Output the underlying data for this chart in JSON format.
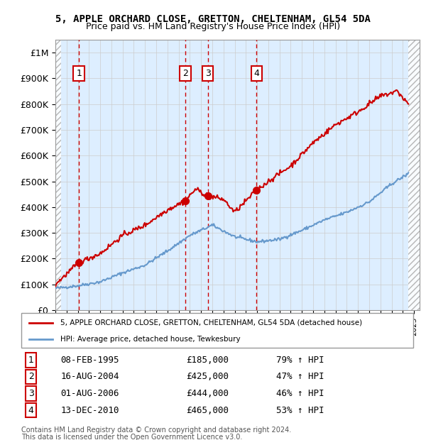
{
  "title": "5, APPLE ORCHARD CLOSE, GRETTON, CHELTENHAM, GL54 5DA",
  "subtitle": "Price paid vs. HM Land Registry's House Price Index (HPI)",
  "xlim": [
    1993.0,
    2025.5
  ],
  "ylim": [
    0,
    1050000
  ],
  "yticks": [
    0,
    100000,
    200000,
    300000,
    400000,
    500000,
    600000,
    700000,
    800000,
    900000,
    1000000
  ],
  "ytick_labels": [
    "£0",
    "£100K",
    "£200K",
    "£300K",
    "£400K",
    "£500K",
    "£600K",
    "£700K",
    "£800K",
    "£900K",
    "£1M"
  ],
  "transactions": [
    {
      "num": 1,
      "year": 1995.1,
      "price": 185000,
      "date": "08-FEB-1995",
      "hpi_pct": "79%"
    },
    {
      "num": 2,
      "year": 2004.6,
      "price": 425000,
      "date": "16-AUG-2004",
      "hpi_pct": "47%"
    },
    {
      "num": 3,
      "year": 2006.6,
      "price": 444000,
      "date": "01-AUG-2006",
      "hpi_pct": "46%"
    },
    {
      "num": 4,
      "year": 2010.95,
      "price": 465000,
      "date": "13-DEC-2010",
      "hpi_pct": "53%"
    }
  ],
  "hpi_color": "#6699cc",
  "price_color": "#cc0000",
  "marker_box_color": "#cc0000",
  "grid_color": "#cccccc",
  "bg_color": "#ddeeff",
  "legend_label_price": "5, APPLE ORCHARD CLOSE, GRETTON, CHELTENHAM, GL54 5DA (detached house)",
  "legend_label_hpi": "HPI: Average price, detached house, Tewkesbury",
  "date_labels": [
    "08-FEB-1995",
    "16-AUG-2004",
    "01-AUG-2006",
    "13-DEC-2010"
  ],
  "price_labels": [
    "£185,000",
    "£425,000",
    "£444,000",
    "£465,000"
  ],
  "hpi_labels": [
    "79% ↑ HPI",
    "47% ↑ HPI",
    "46% ↑ HPI",
    "53% ↑ HPI"
  ],
  "footer1": "Contains HM Land Registry data © Crown copyright and database right 2024.",
  "footer2": "This data is licensed under the Open Government Licence v3.0.",
  "hpi_key_years": [
    1993,
    1995,
    1997,
    1999,
    2001,
    2003,
    2005,
    2007,
    2009,
    2011,
    2013,
    2015,
    2017,
    2019,
    2021,
    2023,
    2024.5
  ],
  "hpi_key_prices": [
    85000,
    95000,
    110000,
    145000,
    175000,
    230000,
    290000,
    330000,
    285000,
    265000,
    275000,
    310000,
    350000,
    380000,
    420000,
    490000,
    530000
  ],
  "price_key_years": [
    1993,
    1995.1,
    1997,
    1999,
    2001,
    2003,
    2004.6,
    2005.5,
    2006.6,
    2008,
    2009,
    2010.95,
    2012,
    2014,
    2016,
    2018,
    2020,
    2022,
    2023.5,
    2024.5
  ],
  "price_key_prices": [
    100000,
    185000,
    220000,
    290000,
    330000,
    390000,
    425000,
    470000,
    444000,
    430000,
    380000,
    465000,
    500000,
    560000,
    650000,
    720000,
    770000,
    830000,
    850000,
    800000
  ]
}
